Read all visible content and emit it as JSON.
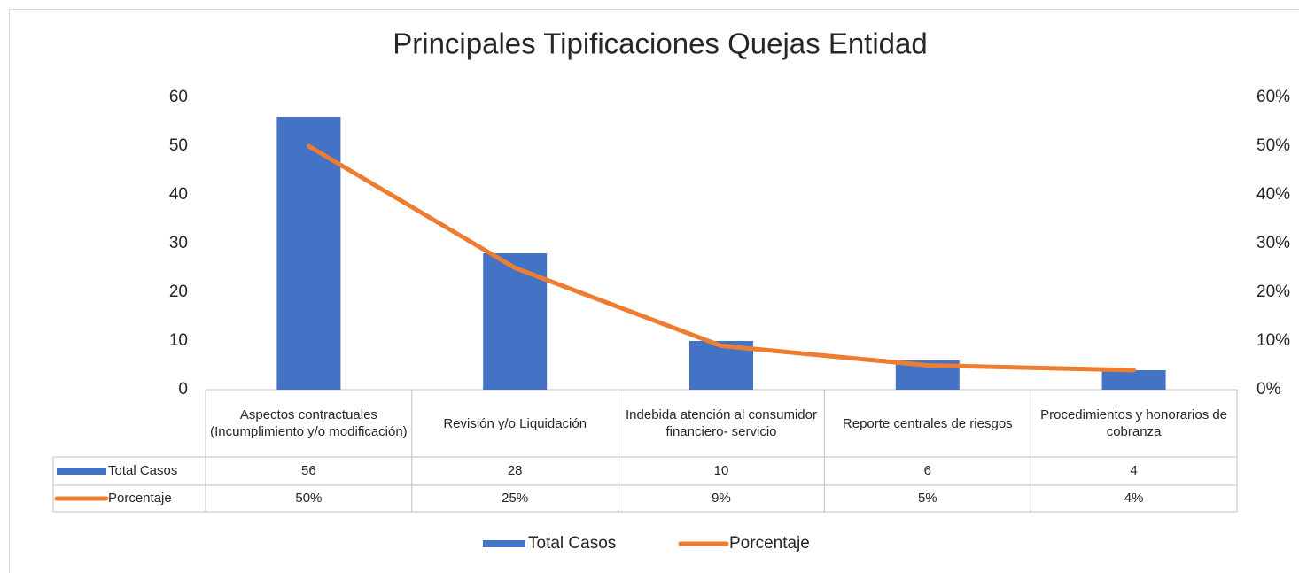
{
  "chart_data": {
    "type": "bar",
    "title": "Principales Tipificaciones Quejas Entidad",
    "categories": [
      "Aspectos contractuales (Incumplimiento y/o modificación)",
      "Revisión y/o Liquidación",
      "Indebida atención al consumidor financiero- servicio",
      "Reporte centrales de riesgos",
      "Procedimientos y honorarios de cobranza"
    ],
    "series": [
      {
        "name": "Total Casos",
        "type": "bar",
        "color": "#4472c4",
        "values": [
          56,
          28,
          10,
          6,
          4
        ]
      },
      {
        "name": "Porcentaje",
        "type": "line",
        "axis": "y2",
        "color": "#ed7d31",
        "values": [
          50,
          25,
          9,
          5,
          4
        ],
        "value_labels": [
          "50%",
          "25%",
          "9%",
          "5%",
          "4%"
        ]
      }
    ],
    "ylim": [
      0,
      60
    ],
    "yticks": [
      0,
      10,
      20,
      30,
      40,
      50,
      60
    ],
    "y2lim": [
      0,
      60
    ],
    "y2ticks": [
      {
        "value": 0,
        "label": "0%"
      },
      {
        "value": 10,
        "label": "10%"
      },
      {
        "value": 20,
        "label": "20%"
      },
      {
        "value": 30,
        "label": "30%"
      },
      {
        "value": 40,
        "label": "40%"
      },
      {
        "value": 50,
        "label": "50%"
      },
      {
        "value": 60,
        "label": "60%"
      }
    ],
    "grid": false,
    "legend": "bottom"
  }
}
